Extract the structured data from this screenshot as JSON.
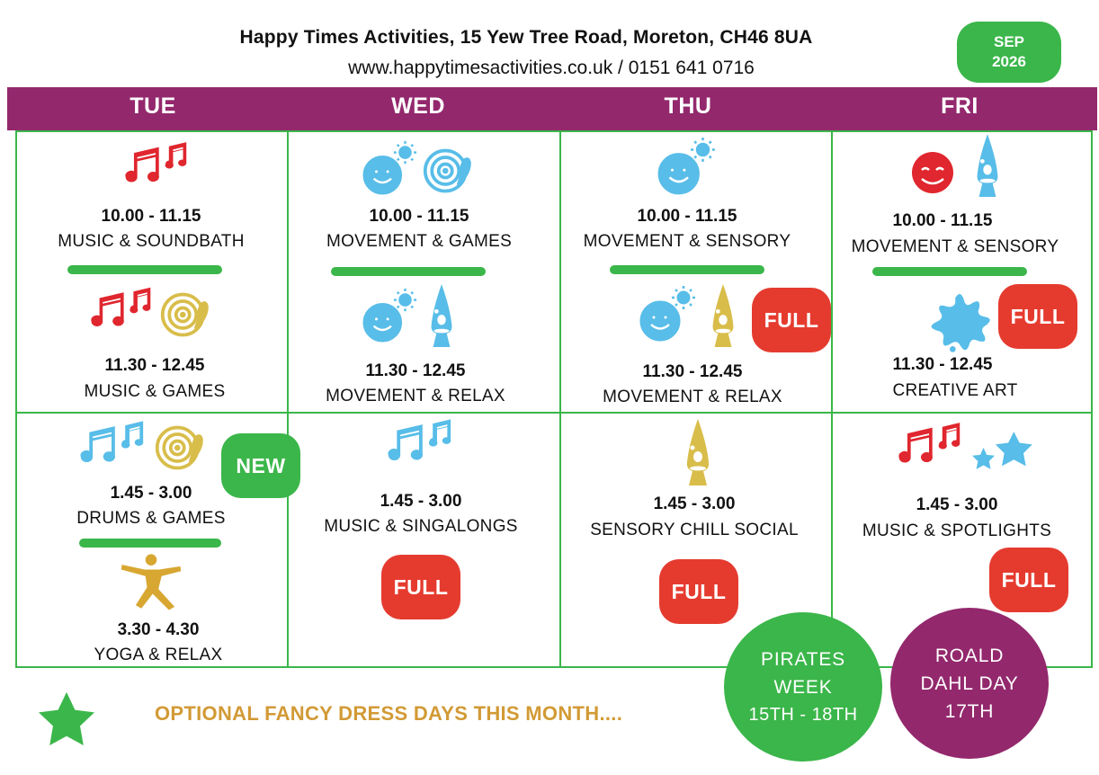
{
  "header": {
    "title": "Happy Times Activities, 15 Yew Tree Road, Moreton, CH46 8UA",
    "contact": "www.happytimesactivities.co.uk / 0151 641 0716",
    "month": "SEP",
    "year": "2026"
  },
  "days": [
    "TUE",
    "WED",
    "THU",
    "FRI"
  ],
  "colors": {
    "header_band": "#93286d",
    "grid_green": "#3bb64a",
    "full_red": "#e53b2f",
    "fancy_dress_text": "#d29a35",
    "icon_blue": "#58bde8",
    "icon_red": "#e0262e",
    "icon_gold": "#d8bd4a",
    "roald_purple": "#93286d"
  },
  "sessions": {
    "tue": [
      {
        "time": "10.00 - 11.15",
        "activity": "MUSIC & SOUNDBATH",
        "icons": [
          "music-note-icon"
        ]
      },
      {
        "time": "11.30 - 12.45",
        "activity": "MUSIC & GAMES",
        "icons": [
          "music-note-icon",
          "target-icon"
        ]
      },
      {
        "time": "1.45 - 3.00",
        "activity": "DRUMS & GAMES",
        "icons": [
          "music-note-icon",
          "target-icon"
        ],
        "badge": "NEW"
      },
      {
        "time": "3.30 - 4.30",
        "activity": "YOGA & RELAX",
        "icons": [
          "yoga-icon"
        ]
      }
    ],
    "wed": [
      {
        "time": "10.00 - 11.15",
        "activity": "MOVEMENT & GAMES",
        "icons": [
          "smiley-sun-icon",
          "target-icon"
        ]
      },
      {
        "time": "11.30 - 12.45",
        "activity": "MOVEMENT & RELAX",
        "icons": [
          "smiley-sun-icon",
          "lava-lamp-icon"
        ]
      },
      {
        "time": "1.45 - 3.00",
        "activity": "MUSIC & SINGALONGS",
        "icons": [
          "music-note-icon"
        ],
        "badge": "FULL"
      }
    ],
    "thu": [
      {
        "time": "10.00 - 11.15",
        "activity": "MOVEMENT & SENSORY",
        "icons": [
          "smiley-sun-icon"
        ]
      },
      {
        "time": "11.30 - 12.45",
        "activity": "MOVEMENT & RELAX",
        "icons": [
          "smiley-sun-icon",
          "lava-lamp-icon"
        ],
        "badge": "FULL"
      },
      {
        "time": "1.45 - 3.00",
        "activity": "SENSORY CHILL SOCIAL",
        "icons": [
          "lava-lamp-icon"
        ],
        "badge": "FULL"
      }
    ],
    "fri": [
      {
        "time": "10.00 - 11.15",
        "activity": "MOVEMENT  & SENSORY",
        "icons": [
          "smiley-icon",
          "lava-lamp-icon"
        ]
      },
      {
        "time": "11.30 - 12.45",
        "activity": "CREATIVE ART",
        "icons": [
          "paint-splat-icon"
        ],
        "badge": "FULL"
      },
      {
        "time": "1.45 - 3.00",
        "activity": "MUSIC & SPOTLIGHTS",
        "icons": [
          "music-note-icon",
          "stars-icon"
        ],
        "badge": "FULL"
      }
    ]
  },
  "footer": {
    "fancy_dress": "OPTIONAL FANCY DRESS DAYS THIS MONTH....",
    "pirates": [
      "PIRATES",
      "WEEK",
      "15TH - 18TH"
    ],
    "roald_dahl": [
      "ROALD",
      "DAHL DAY",
      "17TH"
    ]
  }
}
